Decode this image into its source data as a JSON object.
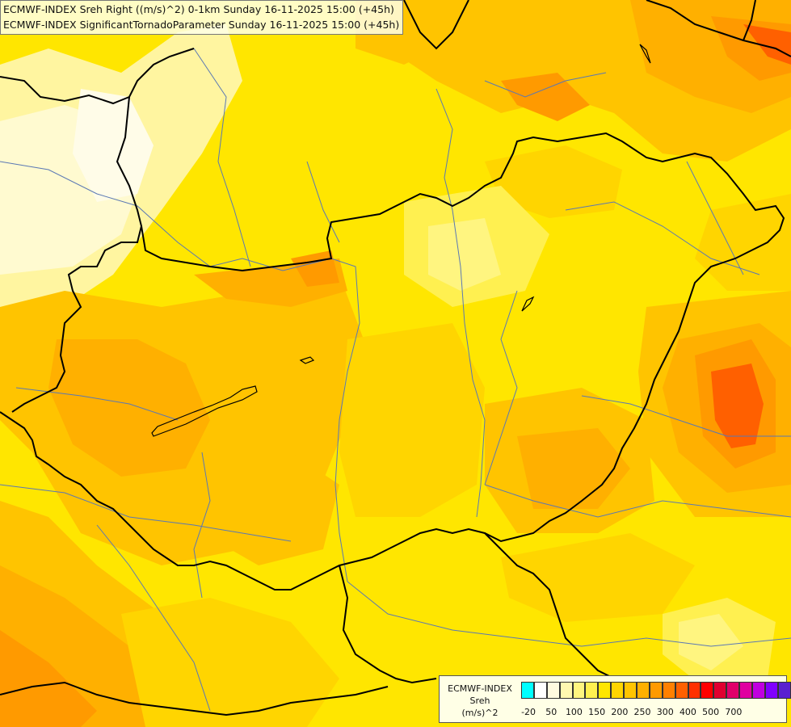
{
  "title_lines": [
    "ECMWF-INDEX Sreh Right ((m/s)^2) 0-1km Sunday 16-11-2025 15:00 (+45h)",
    "ECMWF-INDEX SignificantTornadoParameter Sunday 16-11-2025 15:00 (+45h)"
  ],
  "legend": {
    "title_lines": [
      "ECMWF-INDEX",
      "Sreh",
      "(m/s)^2"
    ],
    "colors": [
      "#00ffff",
      "#ffffff",
      "#fffae0",
      "#fff8b0",
      "#fff580",
      "#fff050",
      "#ffe600",
      "#ffd500",
      "#ffc400",
      "#ffb000",
      "#ff9a00",
      "#ff8000",
      "#ff6000",
      "#ff3000",
      "#ff0000",
      "#e00030",
      "#e0006a",
      "#e000a0",
      "#c000e0",
      "#8000ff",
      "#5a20d0",
      "#3010a0",
      "#000070"
    ],
    "tick_labels": [
      "-20",
      "50",
      "100",
      "150",
      "200",
      "250",
      "300",
      "400",
      "500",
      "700"
    ]
  },
  "colors": {
    "land_base": "#ffe600",
    "country_border": "#000000",
    "river": "#5a78b4"
  }
}
